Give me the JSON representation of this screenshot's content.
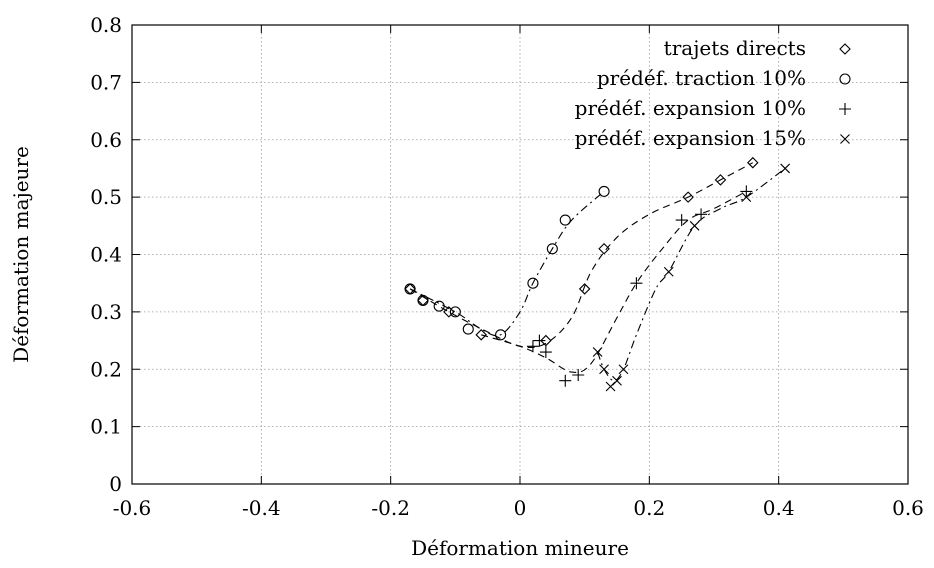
{
  "chart_data": {
    "type": "scatter",
    "xlabel": "Déformation mineure",
    "ylabel": "Déformation majeure",
    "xlim": [
      -0.6,
      0.6
    ],
    "ylim": [
      0,
      0.8
    ],
    "xticks": [
      "-0.6",
      "-0.4",
      "-0.2",
      "0",
      "0.2",
      "0.4",
      "0.6"
    ],
    "yticks": [
      "0",
      "0.1",
      "0.2",
      "0.3",
      "0.4",
      "0.5",
      "0.6",
      "0.7",
      "0.8"
    ],
    "grid": true,
    "legend_position": "top-right",
    "series": [
      {
        "name": "trajets directs",
        "marker": "diamond",
        "line": "dash",
        "points": [
          [
            -0.17,
            0.34
          ],
          [
            -0.15,
            0.32
          ],
          [
            -0.11,
            0.3
          ],
          [
            -0.06,
            0.26
          ],
          [
            0.04,
            0.25
          ],
          [
            0.1,
            0.34
          ],
          [
            0.13,
            0.41
          ],
          [
            0.26,
            0.5
          ],
          [
            0.31,
            0.53
          ],
          [
            0.36,
            0.56
          ]
        ],
        "curve": [
          [
            -0.17,
            0.34
          ],
          [
            -0.11,
            0.3
          ],
          [
            -0.05,
            0.265
          ],
          [
            0.0,
            0.24
          ],
          [
            0.04,
            0.245
          ],
          [
            0.08,
            0.29
          ],
          [
            0.11,
            0.37
          ],
          [
            0.15,
            0.43
          ],
          [
            0.2,
            0.47
          ],
          [
            0.26,
            0.5
          ],
          [
            0.31,
            0.53
          ],
          [
            0.36,
            0.56
          ]
        ]
      },
      {
        "name": "prédéf. traction 10%",
        "marker": "circle",
        "line": "dashdot",
        "points": [
          [
            -0.17,
            0.34
          ],
          [
            -0.15,
            0.32
          ],
          [
            -0.125,
            0.31
          ],
          [
            -0.1,
            0.3
          ],
          [
            -0.08,
            0.27
          ],
          [
            -0.03,
            0.26
          ],
          [
            0.02,
            0.35
          ],
          [
            0.05,
            0.41
          ],
          [
            0.07,
            0.46
          ],
          [
            0.13,
            0.51
          ]
        ],
        "curve": [
          [
            -0.17,
            0.34
          ],
          [
            -0.1,
            0.3
          ],
          [
            -0.06,
            0.27
          ],
          [
            -0.03,
            0.26
          ],
          [
            0.0,
            0.3
          ],
          [
            0.02,
            0.35
          ],
          [
            0.05,
            0.41
          ],
          [
            0.08,
            0.46
          ],
          [
            0.13,
            0.51
          ]
        ]
      },
      {
        "name": "prédéf. expansion 10%",
        "marker": "plus",
        "line": "dash",
        "points": [
          [
            0.02,
            0.24
          ],
          [
            0.03,
            0.25
          ],
          [
            0.04,
            0.23
          ],
          [
            0.07,
            0.18
          ],
          [
            0.09,
            0.19
          ],
          [
            0.18,
            0.35
          ],
          [
            0.25,
            0.46
          ],
          [
            0.28,
            0.47
          ],
          [
            0.35,
            0.51
          ]
        ],
        "curve": [
          [
            -0.06,
            0.26
          ],
          [
            0.0,
            0.24
          ],
          [
            0.04,
            0.22
          ],
          [
            0.08,
            0.195
          ],
          [
            0.11,
            0.21
          ],
          [
            0.15,
            0.29
          ],
          [
            0.18,
            0.35
          ],
          [
            0.22,
            0.41
          ],
          [
            0.26,
            0.46
          ],
          [
            0.3,
            0.48
          ],
          [
            0.35,
            0.51
          ]
        ]
      },
      {
        "name": "prédéf. expansion 15%",
        "marker": "cross",
        "line": "dashdot",
        "points": [
          [
            0.12,
            0.23
          ],
          [
            0.13,
            0.2
          ],
          [
            0.14,
            0.17
          ],
          [
            0.15,
            0.18
          ],
          [
            0.16,
            0.2
          ],
          [
            0.23,
            0.37
          ],
          [
            0.27,
            0.45
          ],
          [
            0.35,
            0.5
          ],
          [
            0.41,
            0.55
          ]
        ],
        "curve": [
          [
            0.12,
            0.23
          ],
          [
            0.13,
            0.2
          ],
          [
            0.145,
            0.18
          ],
          [
            0.16,
            0.2
          ],
          [
            0.18,
            0.26
          ],
          [
            0.21,
            0.34
          ],
          [
            0.23,
            0.37
          ],
          [
            0.27,
            0.45
          ],
          [
            0.31,
            0.48
          ],
          [
            0.35,
            0.5
          ],
          [
            0.41,
            0.55
          ]
        ]
      }
    ]
  }
}
